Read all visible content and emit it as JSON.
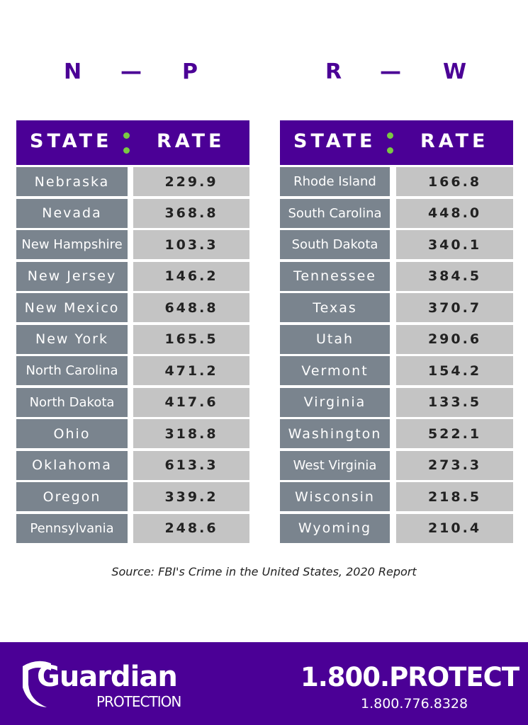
{
  "left": {
    "range": {
      "start": "N",
      "dash": "—",
      "end": "P"
    },
    "header": {
      "state": "STATE",
      "rate": "RATE"
    },
    "rows": [
      {
        "state": "Nebraska",
        "rate": "229.9"
      },
      {
        "state": "Nevada",
        "rate": "368.8"
      },
      {
        "state": "New Hampshire",
        "rate": "103.3"
      },
      {
        "state": "New Jersey",
        "rate": "146.2"
      },
      {
        "state": "New Mexico",
        "rate": "648.8"
      },
      {
        "state": "New York",
        "rate": "165.5"
      },
      {
        "state": "North Carolina",
        "rate": "471.2"
      },
      {
        "state": "North Dakota",
        "rate": "417.6"
      },
      {
        "state": "Ohio",
        "rate": "318.8"
      },
      {
        "state": "Oklahoma",
        "rate": "613.3"
      },
      {
        "state": "Oregon",
        "rate": "339.2"
      },
      {
        "state": "Pennsylvania",
        "rate": "248.6"
      }
    ]
  },
  "right": {
    "range": {
      "start": "R",
      "dash": "—",
      "end": "W"
    },
    "header": {
      "state": "STATE",
      "rate": "RATE"
    },
    "rows": [
      {
        "state": "Rhode Island",
        "rate": "166.8"
      },
      {
        "state": "South Carolina",
        "rate": "448.0"
      },
      {
        "state": "South Dakota",
        "rate": "340.1"
      },
      {
        "state": "Tennessee",
        "rate": "384.5"
      },
      {
        "state": "Texas",
        "rate": "370.7"
      },
      {
        "state": "Utah",
        "rate": "290.6"
      },
      {
        "state": "Vermont",
        "rate": "154.2"
      },
      {
        "state": "Virginia",
        "rate": "133.5"
      },
      {
        "state": "Washington",
        "rate": "522.1"
      },
      {
        "state": "West Virginia",
        "rate": "273.3"
      },
      {
        "state": "Wisconsin",
        "rate": "218.5"
      },
      {
        "state": "Wyoming",
        "rate": "210.4"
      }
    ]
  },
  "source": "Source: FBI's Crime in the United States, 2020 Report",
  "footer": {
    "brand": "Guardian",
    "brand_sub": "PROTECTION",
    "phone_vanity": "1.800.PROTECT",
    "phone_number": "1.800.776.8328",
    "logo_icon": "shield-icon"
  },
  "colors": {
    "purple": "#4b0096",
    "green": "#7ac943",
    "state_cell": "#7a848e",
    "rate_cell": "#c4c4c4"
  }
}
